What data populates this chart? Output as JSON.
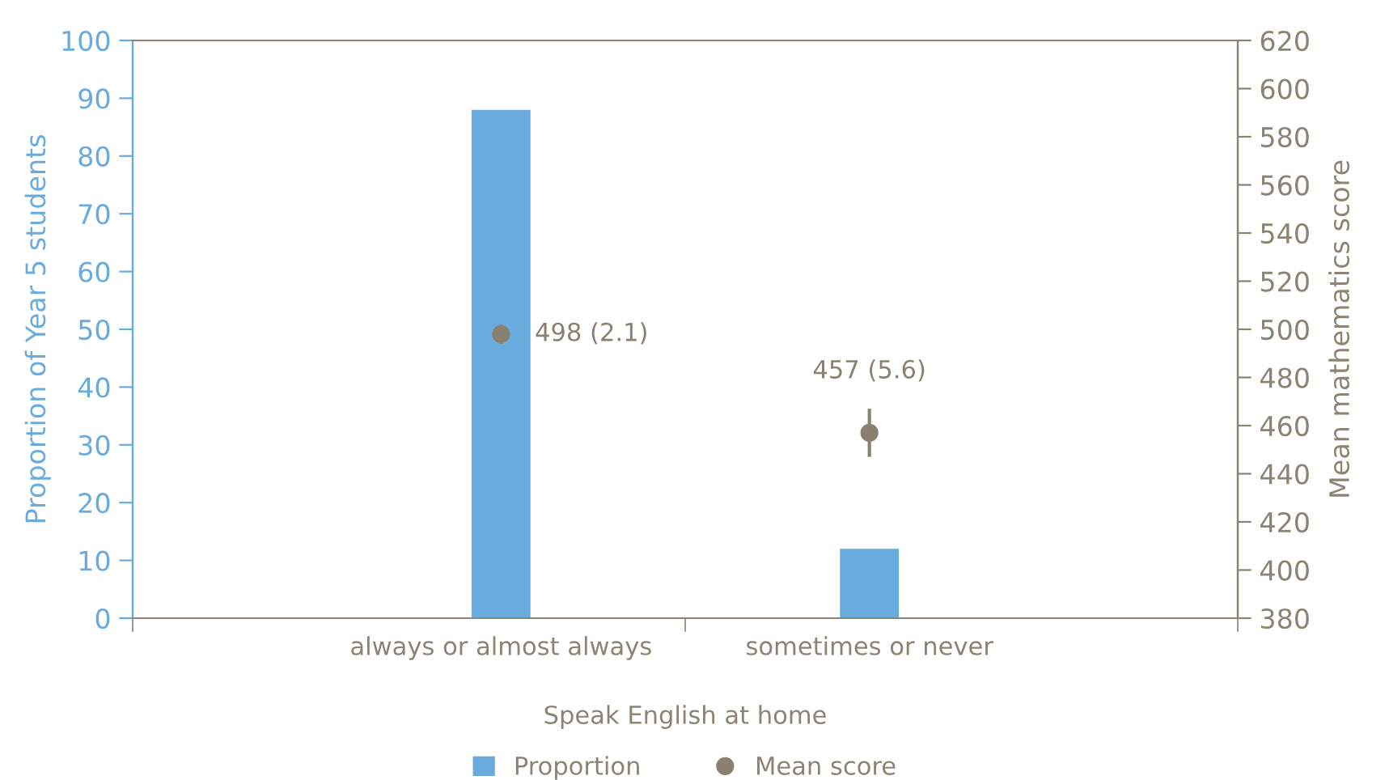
{
  "chart_data": {
    "type": "bar",
    "xlabel": "Speak English at home",
    "ylabel": "Proportion of Year 5 students",
    "y2label": "Mean mathematics score",
    "categories": [
      "always or almost always",
      "sometimes or never"
    ],
    "series": [
      {
        "name": "Proportion",
        "color": "#6aabdd",
        "values": [
          88,
          12
        ]
      },
      {
        "name": "Mean score",
        "type": "scatter",
        "axis": "y2",
        "color": "#8a8070",
        "values": [
          498,
          457
        ],
        "errors": [
          4,
          10
        ],
        "value_labels": [
          "498 (2.1)",
          "457 (5.6)"
        ]
      }
    ],
    "ylim": [
      0,
      100
    ],
    "yticks": [
      0,
      10,
      20,
      30,
      40,
      50,
      60,
      70,
      80,
      90,
      100
    ],
    "y2lim": [
      380,
      620
    ],
    "y2ticks": [
      380,
      400,
      420,
      440,
      460,
      480,
      500,
      520,
      540,
      560,
      580,
      600,
      620
    ],
    "grid": false,
    "legend": "bottom",
    "marker": "circle"
  }
}
